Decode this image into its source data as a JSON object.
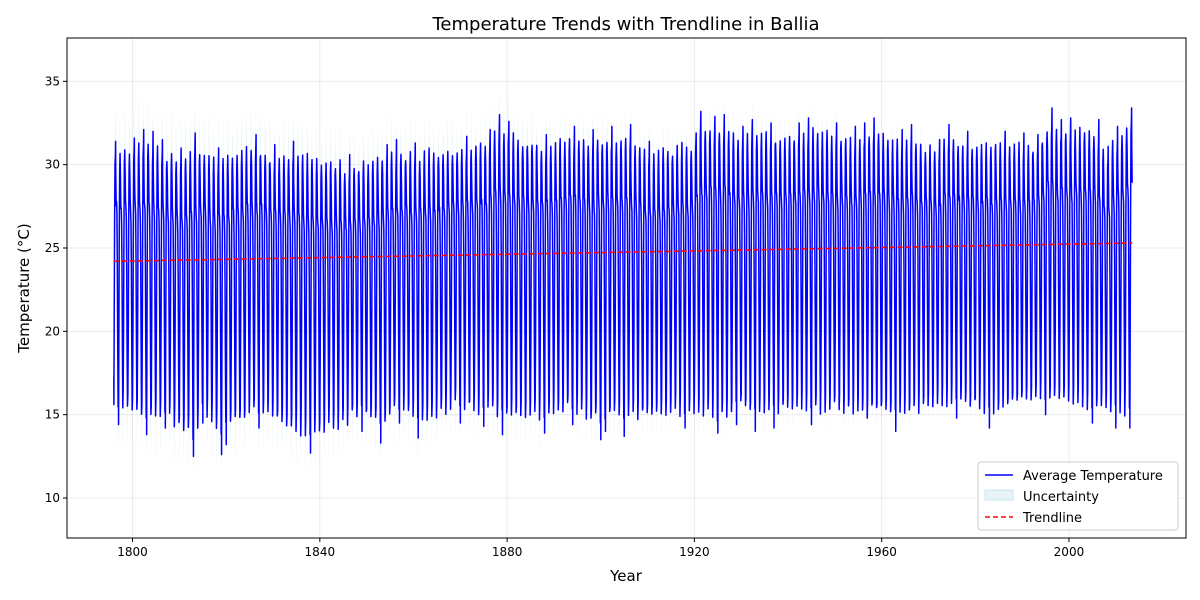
{
  "chart_data": {
    "type": "line",
    "title": "Temperature Trends with Trendline in Ballia",
    "xlabel": "Year",
    "ylabel": "Temperature (°C)",
    "xlim": [
      1786,
      2025
    ],
    "ylim": [
      7.6,
      37.6
    ],
    "x_ticks": [
      1800,
      1840,
      1880,
      1920,
      1960,
      2000
    ],
    "y_ticks": [
      10,
      15,
      20,
      25,
      30,
      35
    ],
    "grid": true,
    "legend_placement": "bottom-right",
    "x_range": [
      1796,
      2013.5
    ],
    "series": [
      {
        "name": "Average Temperature",
        "style": "solid",
        "color": "#0000ff",
        "summer_peaks": [
          {
            "x": 1796,
            "y": 31.4
          },
          {
            "x": 1800,
            "y": 31.6
          },
          {
            "x": 1802,
            "y": 32.1
          },
          {
            "x": 1804,
            "y": 32.0
          },
          {
            "x": 1806,
            "y": 31.5
          },
          {
            "x": 1810,
            "y": 31.0
          },
          {
            "x": 1813,
            "y": 31.9
          },
          {
            "x": 1818,
            "y": 31.0
          },
          {
            "x": 1826,
            "y": 31.8
          },
          {
            "x": 1830,
            "y": 31.2
          },
          {
            "x": 1834,
            "y": 31.4
          },
          {
            "x": 1846,
            "y": 30.6
          },
          {
            "x": 1854,
            "y": 31.2
          },
          {
            "x": 1856,
            "y": 31.5
          },
          {
            "x": 1860,
            "y": 31.3
          },
          {
            "x": 1871,
            "y": 31.7
          },
          {
            "x": 1876,
            "y": 32.1
          },
          {
            "x": 1878,
            "y": 33.0
          },
          {
            "x": 1880,
            "y": 32.6
          },
          {
            "x": 1888,
            "y": 31.8
          },
          {
            "x": 1894,
            "y": 32.3
          },
          {
            "x": 1898,
            "y": 32.1
          },
          {
            "x": 1902,
            "y": 32.3
          },
          {
            "x": 1906,
            "y": 32.4
          },
          {
            "x": 1910,
            "y": 31.4
          },
          {
            "x": 1920,
            "y": 31.9
          },
          {
            "x": 1921,
            "y": 33.2
          },
          {
            "x": 1924,
            "y": 32.9
          },
          {
            "x": 1926,
            "y": 33.0
          },
          {
            "x": 1930,
            "y": 32.3
          },
          {
            "x": 1932,
            "y": 32.7
          },
          {
            "x": 1936,
            "y": 32.5
          },
          {
            "x": 1942,
            "y": 32.5
          },
          {
            "x": 1944,
            "y": 32.8
          },
          {
            "x": 1950,
            "y": 32.5
          },
          {
            "x": 1954,
            "y": 32.3
          },
          {
            "x": 1956,
            "y": 32.5
          },
          {
            "x": 1958,
            "y": 32.8
          },
          {
            "x": 1964,
            "y": 32.1
          },
          {
            "x": 1966,
            "y": 32.4
          },
          {
            "x": 1972,
            "y": 31.5
          },
          {
            "x": 1974,
            "y": 32.4
          },
          {
            "x": 1978,
            "y": 32.0
          },
          {
            "x": 1986,
            "y": 32.0
          },
          {
            "x": 1990,
            "y": 31.9
          },
          {
            "x": 1993,
            "y": 31.8
          },
          {
            "x": 1996,
            "y": 33.4
          },
          {
            "x": 1998,
            "y": 32.7
          },
          {
            "x": 2000,
            "y": 32.8
          },
          {
            "x": 2006,
            "y": 32.7
          },
          {
            "x": 2008,
            "y": 31.1
          },
          {
            "x": 2010,
            "y": 32.3
          },
          {
            "x": 2013,
            "y": 33.4
          }
        ],
        "winter_troughs": [
          {
            "x": 1796,
            "y": 15.6
          },
          {
            "x": 1797,
            "y": 14.4
          },
          {
            "x": 1803,
            "y": 13.8
          },
          {
            "x": 1807,
            "y": 14.2
          },
          {
            "x": 1813,
            "y": 12.5
          },
          {
            "x": 1815,
            "y": 14.5
          },
          {
            "x": 1819,
            "y": 12.6
          },
          {
            "x": 1820,
            "y": 13.2
          },
          {
            "x": 1827,
            "y": 14.2
          },
          {
            "x": 1838,
            "y": 12.7
          },
          {
            "x": 1849,
            "y": 14.0
          },
          {
            "x": 1853,
            "y": 13.3
          },
          {
            "x": 1857,
            "y": 14.5
          },
          {
            "x": 1861,
            "y": 13.6
          },
          {
            "x": 1870,
            "y": 14.5
          },
          {
            "x": 1875,
            "y": 14.3
          },
          {
            "x": 1879,
            "y": 13.8
          },
          {
            "x": 1888,
            "y": 13.9
          },
          {
            "x": 1894,
            "y": 14.4
          },
          {
            "x": 1900,
            "y": 13.5
          },
          {
            "x": 1901,
            "y": 14.0
          },
          {
            "x": 1905,
            "y": 13.7
          },
          {
            "x": 1918,
            "y": 14.2
          },
          {
            "x": 1925,
            "y": 13.9
          },
          {
            "x": 1929,
            "y": 14.4
          },
          {
            "x": 1933,
            "y": 14.0
          },
          {
            "x": 1937,
            "y": 14.2
          },
          {
            "x": 1945,
            "y": 14.4
          },
          {
            "x": 1963,
            "y": 14.0
          },
          {
            "x": 1976,
            "y": 14.8
          },
          {
            "x": 1983,
            "y": 14.2
          },
          {
            "x": 1995,
            "y": 15.0
          },
          {
            "x": 2005,
            "y": 14.5
          },
          {
            "x": 2010,
            "y": 14.2
          },
          {
            "x": 2013,
            "y": 14.2
          }
        ]
      },
      {
        "name": "Uncertainty",
        "style": "band",
        "color": "#add8e6",
        "band_halfwidth_early": 2.5,
        "band_halfwidth_late": 0.6
      },
      {
        "name": "Trendline",
        "style": "dashed",
        "color": "#ff0000",
        "points": [
          {
            "x": 1796,
            "y": 24.2
          },
          {
            "x": 2013.5,
            "y": 25.3
          }
        ]
      }
    ]
  }
}
